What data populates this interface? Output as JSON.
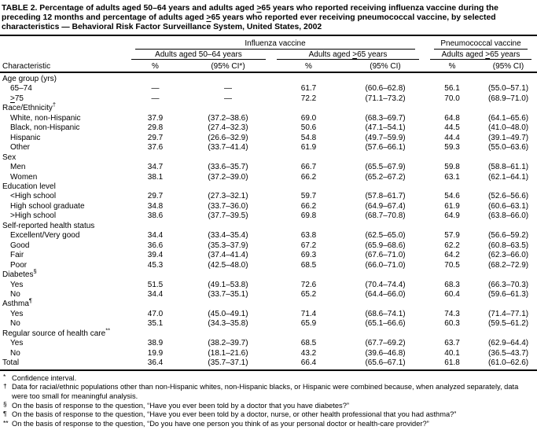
{
  "colors": {
    "text": "#000000",
    "background": "#ffffff",
    "rules": "#000000"
  },
  "title": "TABLE 2. Percentage of adults aged 50–64 years and adults aged ≥65 years who reported receiving influenza vaccine during the preceding 12 months and percentage of adults aged ≥65 years who reported ever receiving pneumococcal vaccine, by selected characteristics — Behavioral Risk Factor Surveillance System, United States, 2002",
  "table": {
    "row_header": "Characteristic",
    "col_groups": [
      {
        "label": "Influenza vaccine",
        "subgroups": [
          {
            "label": "Adults aged 50–64 years",
            "cols": [
              "%",
              "(95% CI*)"
            ]
          },
          {
            "label": "Adults aged ≥65 years",
            "cols": [
              "%",
              "(95% CI)"
            ]
          }
        ]
      },
      {
        "label": "Pneumococcal vaccine",
        "subgroups": [
          {
            "label": "Adults aged ≥65 years",
            "cols": [
              "%",
              "(95% CI)"
            ]
          }
        ]
      }
    ],
    "sections": [
      {
        "label": "Age group (yrs)",
        "marker": null,
        "rows": [
          {
            "label": "65–74",
            "values": [
              "—",
              "—",
              "61.7",
              "(60.6–62.8)",
              "56.1",
              "(55.0–57.1)"
            ]
          },
          {
            "label": "≥75",
            "values": [
              "—",
              "—",
              "72.2",
              "(71.1–73.2)",
              "70.0",
              "(68.9–71.0)"
            ]
          }
        ]
      },
      {
        "label": "Race/Ethnicity",
        "marker": "†",
        "rows": [
          {
            "label": "White, non-Hispanic",
            "values": [
              "37.9",
              "(37.2–38.6)",
              "69.0",
              "(68.3–69.7)",
              "64.8",
              "(64.1–65.6)"
            ]
          },
          {
            "label": "Black, non-Hispanic",
            "values": [
              "29.8",
              "(27.4–32.3)",
              "50.6",
              "(47.1–54.1)",
              "44.5",
              "(41.0–48.0)"
            ]
          },
          {
            "label": "Hispanic",
            "values": [
              "29.7",
              "(26.6–32.9)",
              "54.8",
              "(49.7–59.9)",
              "44.4",
              "(39.1–49.7)"
            ]
          },
          {
            "label": "Other",
            "values": [
              "37.6",
              "(33.7–41.4)",
              "61.9",
              "(57.6–66.1)",
              "59.3",
              "(55.0–63.6)"
            ]
          }
        ]
      },
      {
        "label": "Sex",
        "marker": null,
        "rows": [
          {
            "label": "Men",
            "values": [
              "34.7",
              "(33.6–35.7)",
              "66.7",
              "(65.5–67.9)",
              "59.8",
              "(58.8–61.1)"
            ]
          },
          {
            "label": "Women",
            "values": [
              "38.1",
              "(37.2–39.0)",
              "66.2",
              "(65.2–67.2)",
              "63.1",
              "(62.1–64.1)"
            ]
          }
        ]
      },
      {
        "label": "Education level",
        "marker": null,
        "rows": [
          {
            "label": "<High school",
            "values": [
              "29.7",
              "(27.3–32.1)",
              "59.7",
              "(57.8–61.7)",
              "54.6",
              "(52.6–56.6)"
            ]
          },
          {
            "label": "High school graduate",
            "values": [
              "34.8",
              "(33.7–36.0)",
              "66.2",
              "(64.9–67.4)",
              "61.9",
              "(60.6–63.1)"
            ]
          },
          {
            "label": ">High school",
            "values": [
              "38.6",
              "(37.7–39.5)",
              "69.8",
              "(68.7–70.8)",
              "64.9",
              "(63.8–66.0)"
            ]
          }
        ]
      },
      {
        "label": "Self-reported health status",
        "marker": null,
        "rows": [
          {
            "label": "Excellent/Very good",
            "values": [
              "34.4",
              "(33.4–35.4)",
              "63.8",
              "(62.5–65.0)",
              "57.9",
              "(56.6–59.2)"
            ]
          },
          {
            "label": "Good",
            "values": [
              "36.6",
              "(35.3–37.9)",
              "67.2",
              "(65.9–68.6)",
              "62.2",
              "(60.8–63.5)"
            ]
          },
          {
            "label": "Fair",
            "values": [
              "39.4",
              "(37.4–41.4)",
              "69.3",
              "(67.6–71.0)",
              "64.2",
              "(62.3–66.0)"
            ]
          },
          {
            "label": "Poor",
            "values": [
              "45.3",
              "(42.5–48.0)",
              "68.5",
              "(66.0–71.0)",
              "70.5",
              "(68.2–72.9)"
            ]
          }
        ]
      },
      {
        "label": "Diabetes",
        "marker": "§",
        "rows": [
          {
            "label": "Yes",
            "values": [
              "51.5",
              "(49.1–53.8)",
              "72.6",
              "(70.4–74.4)",
              "68.3",
              "(66.3–70.3)"
            ]
          },
          {
            "label": "No",
            "values": [
              "34.4",
              "(33.7–35.1)",
              "65.2",
              "(64.4–66.0)",
              "60.4",
              "(59.6–61.3)"
            ]
          }
        ]
      },
      {
        "label": "Asthma",
        "marker": "¶",
        "rows": [
          {
            "label": "Yes",
            "values": [
              "47.0",
              "(45.0–49.1)",
              "71.4",
              "(68.6–74.1)",
              "74.3",
              "(71.4–77.1)"
            ]
          },
          {
            "label": "No",
            "values": [
              "35.1",
              "(34.3–35.8)",
              "65.9",
              "(65.1–66.6)",
              "60.3",
              "(59.5–61.2)"
            ]
          }
        ]
      },
      {
        "label": "Regular source of health care",
        "marker": "**",
        "rows": [
          {
            "label": "Yes",
            "values": [
              "38.9",
              "(38.2–39.7)",
              "68.5",
              "(67.7–69.2)",
              "63.7",
              "(62.9–64.4)"
            ]
          },
          {
            "label": "No",
            "values": [
              "19.9",
              "(18.1–21.6)",
              "43.2",
              "(39.6–46.8)",
              "40.1",
              "(36.5–43.7)"
            ]
          }
        ]
      },
      {
        "label": "Total",
        "marker": null,
        "total": true,
        "values": [
          "36.4",
          "(35.7–37.1)",
          "66.4",
          "(65.6–67.1)",
          "61.8",
          "(61.0–62.6)"
        ],
        "rows": []
      }
    ]
  },
  "footnotes": [
    {
      "symbol": "*",
      "text": "Confidence interval."
    },
    {
      "symbol": "†",
      "text": "Data for racial/ethnic populations other than non-Hispanic whites, non-Hispanic blacks, or Hispanic were combined because, when analyzed separately, data were too small for meaningful analysis."
    },
    {
      "symbol": "§",
      "text": "On the basis of response to the question, “Have you ever been told by a doctor that you have diabetes?”"
    },
    {
      "symbol": "¶",
      "text": "On the basis of response to the question, “Have you ever been told by a doctor, nurse, or other health professional that you had asthma?”"
    },
    {
      "symbol": "**",
      "text": "On the basis of response to the question, “Do you have one person you think of as your personal doctor or health-care provider?”"
    }
  ]
}
